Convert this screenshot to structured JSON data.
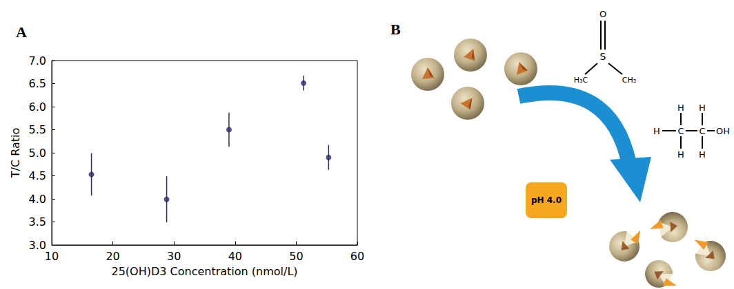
{
  "chart_data": {
    "type": "scatter",
    "panel_label": "A",
    "x_label": "25(OH)D3 Concentration (nmol/L)",
    "y_label": "T/C Ratio",
    "x": [
      16.5,
      28.8,
      39.0,
      51.2,
      55.3
    ],
    "values": [
      4.53,
      3.99,
      5.5,
      6.51,
      4.9
    ],
    "errors": [
      0.46,
      0.5,
      0.37,
      0.16,
      0.27
    ],
    "color": "#2b2a6b",
    "marker": "circle",
    "xlim": [
      10,
      60
    ],
    "xticks": [
      10,
      20,
      30,
      40,
      50,
      60
    ],
    "ylim": [
      3,
      7
    ],
    "yticks": [
      {
        "value": 3,
        "label": "3.0"
      },
      {
        "value": 3.5,
        "label": "3.5"
      },
      {
        "value": 4,
        "label": "4.0"
      },
      {
        "value": 4.5,
        "label": "4.5"
      },
      {
        "value": 5,
        "label": "5.0"
      },
      {
        "value": 5.5,
        "label": "5.5"
      },
      {
        "value": 6,
        "label": "6.0"
      },
      {
        "value": 6.5,
        "label": "6.5"
      },
      {
        "value": 7,
        "label": "7.0"
      }
    ],
    "grid": false
  },
  "diagram": {
    "panel_label": "B",
    "condition": "pH 4.0",
    "dmso": {
      "top": "O",
      "center": "S",
      "left": "H₃C",
      "right": "CH₃"
    },
    "ethanol": {
      "top": [
        "H",
        "H"
      ],
      "middle": [
        "H",
        "C",
        "C",
        "OH"
      ],
      "bottom": [
        "H",
        "H"
      ]
    }
  }
}
